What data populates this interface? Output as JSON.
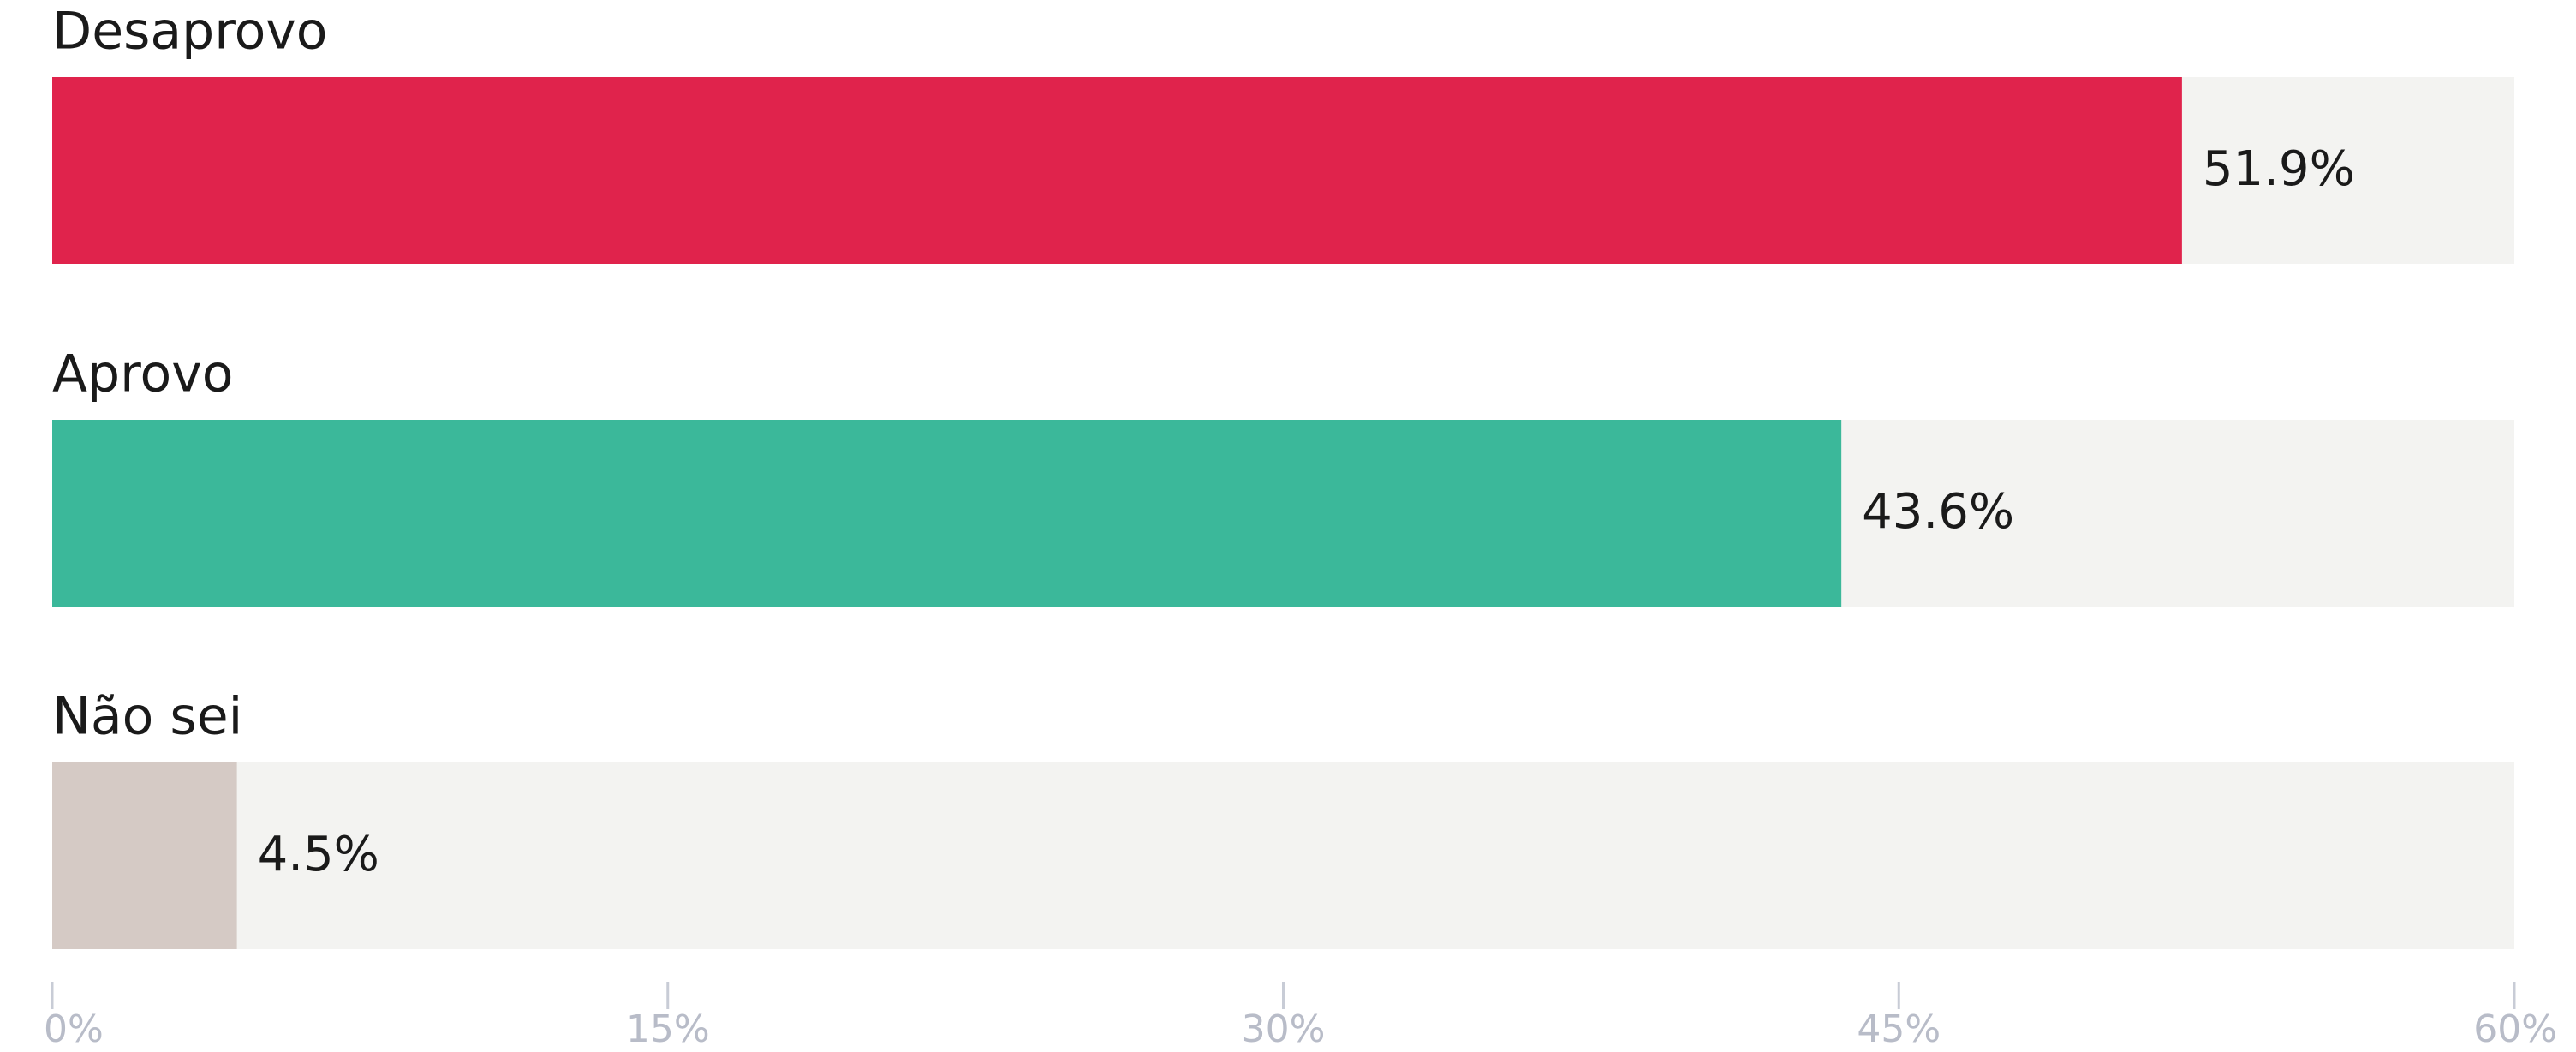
{
  "chart_data": {
    "type": "hbar",
    "categories": [
      "Desaprovo",
      "Aprovo",
      "Não sei"
    ],
    "values": [
      51.9,
      43.6,
      4.5
    ],
    "value_labels": [
      "51.9%",
      "43.6%",
      "4.5%"
    ],
    "colors": [
      "#e0234c",
      "#3bb89a",
      "#d5cac5"
    ],
    "xlim": [
      0,
      60
    ],
    "xticks": [
      {
        "value": 0,
        "label": "0%"
      },
      {
        "value": 15,
        "label": "15%"
      },
      {
        "value": 30,
        "label": "30%"
      },
      {
        "value": 45,
        "label": "45%"
      },
      {
        "value": 60,
        "label": "60%"
      }
    ]
  }
}
